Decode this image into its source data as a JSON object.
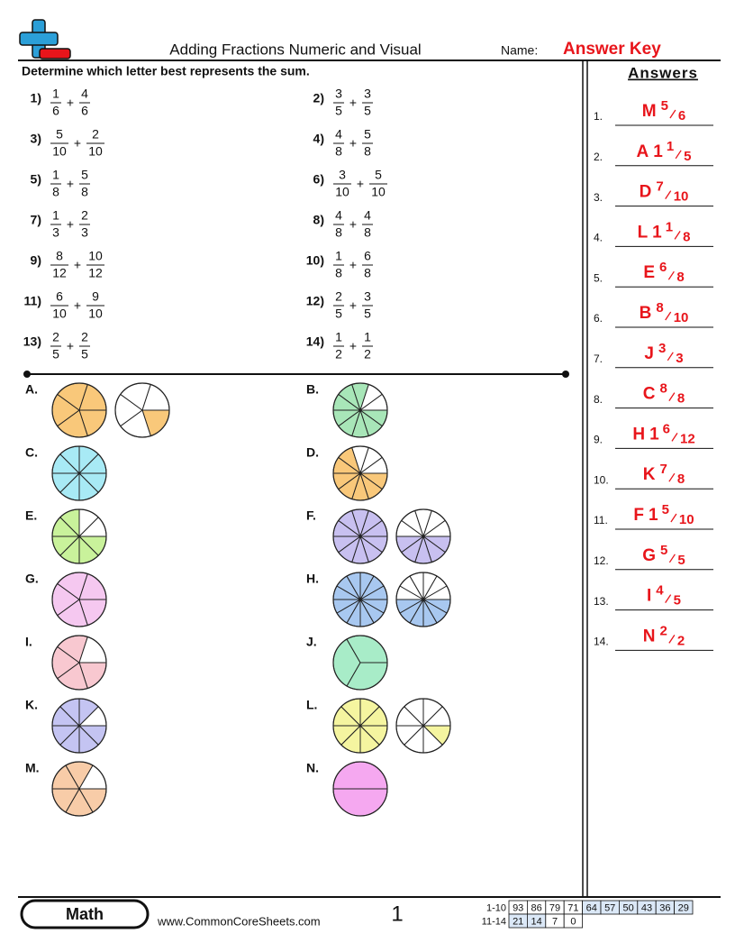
{
  "header": {
    "title": "Adding Fractions Numeric and Visual",
    "name_label": "Name:",
    "name_value": "Answer Key"
  },
  "instructions": "Determine which letter best represents the sum.",
  "operator": "+",
  "problems": [
    {
      "number": "1)",
      "a": [
        1,
        6
      ],
      "b": [
        4,
        6
      ]
    },
    {
      "number": "2)",
      "a": [
        3,
        5
      ],
      "b": [
        3,
        5
      ]
    },
    {
      "number": "3)",
      "a": [
        5,
        10
      ],
      "b": [
        2,
        10
      ]
    },
    {
      "number": "4)",
      "a": [
        4,
        8
      ],
      "b": [
        5,
        8
      ]
    },
    {
      "number": "5)",
      "a": [
        1,
        8
      ],
      "b": [
        5,
        8
      ]
    },
    {
      "number": "6)",
      "a": [
        3,
        10
      ],
      "b": [
        5,
        10
      ]
    },
    {
      "number": "7)",
      "a": [
        1,
        3
      ],
      "b": [
        2,
        3
      ]
    },
    {
      "number": "8)",
      "a": [
        4,
        8
      ],
      "b": [
        4,
        8
      ]
    },
    {
      "number": "9)",
      "a": [
        8,
        12
      ],
      "b": [
        10,
        12
      ]
    },
    {
      "number": "10)",
      "a": [
        1,
        8
      ],
      "b": [
        6,
        8
      ]
    },
    {
      "number": "11)",
      "a": [
        6,
        10
      ],
      "b": [
        9,
        10
      ]
    },
    {
      "number": "12)",
      "a": [
        2,
        5
      ],
      "b": [
        3,
        5
      ]
    },
    {
      "number": "13)",
      "a": [
        2,
        5
      ],
      "b": [
        2,
        5
      ]
    },
    {
      "number": "14)",
      "a": [
        1,
        2
      ],
      "b": [
        1,
        2
      ]
    }
  ],
  "pies": [
    {
      "letter": "A.",
      "slices": 5,
      "filled": [
        5,
        1
      ],
      "color": "#f9c87a"
    },
    {
      "letter": "B.",
      "slices": 10,
      "filled": [
        8
      ],
      "color": "#a8e6b8"
    },
    {
      "letter": "C.",
      "slices": 8,
      "filled": [
        8
      ],
      "color": "#a8eaf5"
    },
    {
      "letter": "D.",
      "slices": 10,
      "filled": [
        7
      ],
      "color": "#f9c87a"
    },
    {
      "letter": "E.",
      "slices": 8,
      "filled": [
        6
      ],
      "color": "#c9f29b"
    },
    {
      "letter": "F.",
      "slices": 10,
      "filled": [
        10,
        5
      ],
      "color": "#c8c0f0"
    },
    {
      "letter": "G.",
      "slices": 5,
      "filled": [
        5
      ],
      "color": "#f5c8f0"
    },
    {
      "letter": "H.",
      "slices": 12,
      "filled": [
        12,
        6
      ],
      "color": "#a8c8f0"
    },
    {
      "letter": "I.",
      "slices": 5,
      "filled": [
        4
      ],
      "color": "#f8c8d0"
    },
    {
      "letter": "J.",
      "slices": 3,
      "filled": [
        3
      ],
      "color": "#a8ecc8"
    },
    {
      "letter": "K.",
      "slices": 8,
      "filled": [
        7
      ],
      "color": "#c4c4f2"
    },
    {
      "letter": "L.",
      "slices": 8,
      "filled": [
        8,
        1
      ],
      "color": "#f5f5a0"
    },
    {
      "letter": "M.",
      "slices": 6,
      "filled": [
        5
      ],
      "color": "#f8cca8"
    },
    {
      "letter": "N.",
      "slices": 2,
      "filled": [
        2
      ],
      "color": "#f5a8f0"
    }
  ],
  "answers_title": "Answers",
  "answers": [
    {
      "number": "1.",
      "letter": "M",
      "numerator": 5,
      "denominator": 6
    },
    {
      "number": "2.",
      "letter": "A",
      "whole": 1,
      "numerator": 1,
      "denominator": 5
    },
    {
      "number": "3.",
      "letter": "D",
      "numerator": 7,
      "denominator": 10
    },
    {
      "number": "4.",
      "letter": "L",
      "whole": 1,
      "numerator": 1,
      "denominator": 8
    },
    {
      "number": "5.",
      "letter": "E",
      "numerator": 6,
      "denominator": 8
    },
    {
      "number": "6.",
      "letter": "B",
      "numerator": 8,
      "denominator": 10
    },
    {
      "number": "7.",
      "letter": "J",
      "numerator": 3,
      "denominator": 3
    },
    {
      "number": "8.",
      "letter": "C",
      "numerator": 8,
      "denominator": 8
    },
    {
      "number": "9.",
      "letter": "H",
      "whole": 1,
      "numerator": 6,
      "denominator": 12
    },
    {
      "number": "10.",
      "letter": "K",
      "numerator": 7,
      "denominator": 8
    },
    {
      "number": "11.",
      "letter": "F",
      "whole": 1,
      "numerator": 5,
      "denominator": 10
    },
    {
      "number": "12.",
      "letter": "G",
      "numerator": 5,
      "denominator": 5
    },
    {
      "number": "13.",
      "letter": "I",
      "numerator": 4,
      "denominator": 5
    },
    {
      "number": "14.",
      "letter": "N",
      "numerator": 2,
      "denominator": 2
    }
  ],
  "footer": {
    "subject": "Math",
    "website": "www.CommonCoreSheets.com",
    "page": "1",
    "score_table": [
      {
        "label": "1-10",
        "scores": [
          93,
          86,
          79,
          71,
          64,
          57,
          50,
          43,
          36,
          29
        ]
      },
      {
        "label": "11-14",
        "scores": [
          21,
          14,
          7,
          0
        ]
      }
    ]
  }
}
